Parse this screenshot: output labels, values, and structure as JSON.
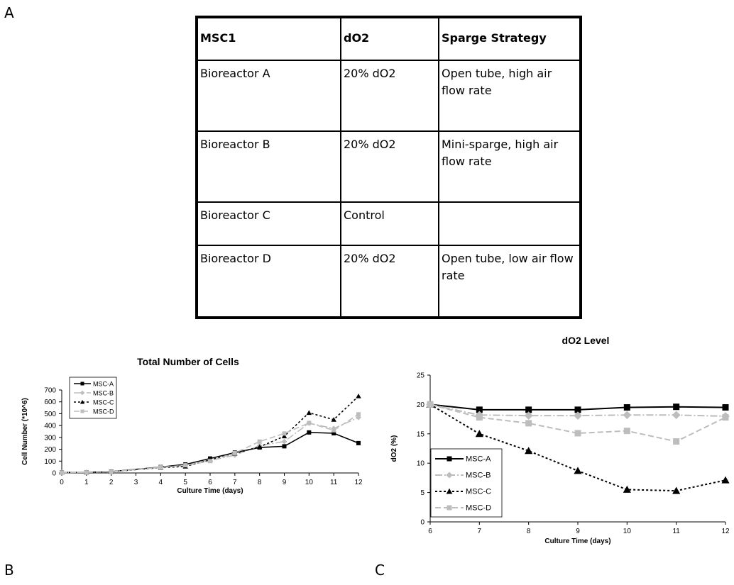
{
  "panel_labels": {
    "a": "A",
    "b": "B",
    "c": "C"
  },
  "table": {
    "headers": [
      "MSC1",
      "dO2",
      "Sparge Strategy"
    ],
    "rows": [
      [
        "Bioreactor A",
        "20% dO2",
        "Open tube, high air flow rate"
      ],
      [
        "Bioreactor B",
        "20% dO2",
        "Mini-sparge, high air flow rate"
      ],
      [
        "Bioreactor C",
        "Control",
        ""
      ],
      [
        "Bioreactor D",
        "20% dO2",
        "Open tube, low air flow rate"
      ]
    ]
  },
  "chart_data": [
    {
      "type": "line",
      "title": "Total Number of Cells",
      "xlabel": "Culture Time (days)",
      "ylabel": "Cell Number (*10^6)",
      "x": [
        0,
        1,
        2,
        4,
        5,
        6,
        7,
        8,
        9,
        10,
        11,
        12
      ],
      "xticks": [
        0,
        1,
        2,
        3,
        4,
        5,
        6,
        7,
        8,
        9,
        10,
        11,
        12
      ],
      "xlim": [
        0,
        12
      ],
      "ylim": [
        0,
        700
      ],
      "yticks": [
        0,
        100,
        200,
        300,
        400,
        500,
        600,
        700
      ],
      "grid": false,
      "legend_position": "top-left",
      "series": [
        {
          "name": "MSC-A",
          "color": "#000000",
          "style": "solid",
          "marker": "square",
          "values": [
            5,
            6,
            12,
            50,
            72,
            122,
            172,
            215,
            225,
            342,
            335,
            252
          ]
        },
        {
          "name": "MSC-B",
          "color": "#bdbdbd",
          "style": "dash-dot",
          "marker": "diamond",
          "values": [
            4,
            5,
            10,
            48,
            62,
            105,
            150,
            230,
            265,
            420,
            375,
            468
          ]
        },
        {
          "name": "MSC-C",
          "color": "#000000",
          "style": "dotted",
          "marker": "triangle",
          "values": [
            4,
            4,
            10,
            45,
            55,
            110,
            165,
            220,
            310,
            508,
            450,
            648
          ]
        },
        {
          "name": "MSC-D",
          "color": "#bdbdbd",
          "style": "dashed",
          "marker": "square",
          "values": [
            4,
            5,
            10,
            47,
            65,
            100,
            168,
            265,
            333,
            422,
            360,
            495
          ]
        }
      ]
    },
    {
      "type": "line",
      "title": "dO2 Level",
      "xlabel": "Culture Time (days)",
      "ylabel": "dO2 (%)",
      "x": [
        6,
        7,
        8,
        9,
        10,
        11,
        12
      ],
      "xlim": [
        6,
        12
      ],
      "ylim": [
        0,
        25
      ],
      "yticks": [
        0,
        5,
        10,
        15,
        20,
        25
      ],
      "grid": false,
      "legend_position": "bottom-left",
      "series": [
        {
          "name": "MSC-A",
          "color": "#000000",
          "style": "solid",
          "marker": "square",
          "values": [
            20,
            19.1,
            19.1,
            19.1,
            19.5,
            19.6,
            19.5
          ]
        },
        {
          "name": "MSC-B",
          "color": "#bdbdbd",
          "style": "dash-dot",
          "marker": "diamond",
          "values": [
            20,
            18.2,
            18.1,
            18.1,
            18.2,
            18.2,
            18.0
          ]
        },
        {
          "name": "MSC-C",
          "color": "#000000",
          "style": "dotted",
          "marker": "triangle",
          "values": [
            20,
            15,
            12.1,
            8.7,
            5.5,
            5.3,
            7.1
          ]
        },
        {
          "name": "MSC-D",
          "color": "#bdbdbd",
          "style": "dashed",
          "marker": "square",
          "values": [
            20,
            17.8,
            16.8,
            15.1,
            15.5,
            13.7,
            17.8
          ]
        }
      ]
    }
  ]
}
